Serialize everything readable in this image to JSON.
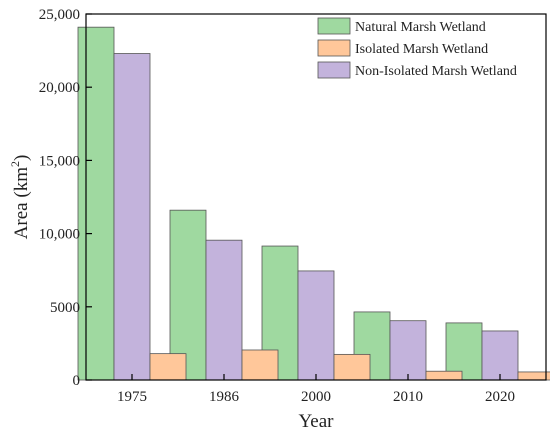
{
  "chart_data": {
    "type": "bar",
    "categories": [
      "1975",
      "1986",
      "2000",
      "2010",
      "2020"
    ],
    "series": [
      {
        "name": "Natural Marsh Wetland",
        "color": "#9fd9a0",
        "values": [
          24100,
          11600,
          9150,
          4650,
          3900
        ]
      },
      {
        "name": "Non-Isolated Marsh Wetland",
        "color": "#c3b3dc",
        "values": [
          22300,
          9550,
          7450,
          4050,
          3350
        ]
      },
      {
        "name": "Isolated Marsh Wetland",
        "color": "#ffc79a",
        "values": [
          1800,
          2050,
          1750,
          600,
          550
        ]
      }
    ],
    "legend_order": [
      "Natural Marsh Wetland",
      "Isolated Marsh Wetland",
      "Non-Isolated Marsh Wetland"
    ],
    "xlabel": "Year",
    "ylabel": "Area (km²)",
    "ylabel_main": "Area (km",
    "ylabel_sup": "2",
    "ylabel_close": ")",
    "ylim": [
      0,
      25000
    ],
    "yticks": [
      0,
      5000,
      10000,
      15000,
      20000,
      25000
    ],
    "ytick_labels": [
      "0",
      "5000",
      "10,000",
      "15,000",
      "20,000",
      "25,000"
    ],
    "legend_position": "top-right",
    "grid": false,
    "title": ""
  }
}
